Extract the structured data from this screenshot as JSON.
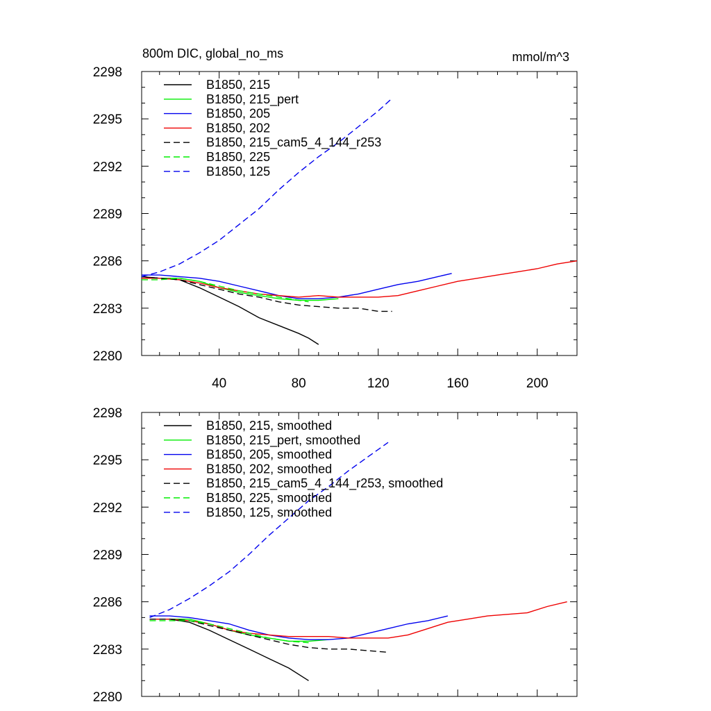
{
  "chart_data": [
    {
      "type": "line",
      "title": "800m DIC, global_no_ms",
      "units": "mmol/m^3",
      "xlabel": "",
      "ylabel": "",
      "xlim": [
        1,
        220
      ],
      "ylim": [
        2280,
        2298
      ],
      "xticks": [
        40,
        80,
        120,
        160,
        200
      ],
      "xtick_labels": [
        "40",
        "80",
        "120",
        "160",
        "200"
      ],
      "yticks": [
        2280,
        2283,
        2286,
        2289,
        2292,
        2295,
        2298
      ],
      "ytick_labels": [
        "2280",
        "2283",
        "2286",
        "2289",
        "2292",
        "2295",
        "2298"
      ],
      "grid": false,
      "legend_position": "top-left",
      "series": [
        {
          "name": "B1850, 215",
          "color": "#000000",
          "dash": "solid",
          "x": [
            1,
            10,
            20,
            30,
            40,
            50,
            60,
            70,
            80,
            85,
            90
          ],
          "y": [
            2285.0,
            2284.9,
            2284.8,
            2284.3,
            2283.7,
            2283.1,
            2282.4,
            2281.9,
            2281.4,
            2281.1,
            2280.7
          ]
        },
        {
          "name": "B1850, 215_pert",
          "color": "#00ee00",
          "dash": "solid",
          "x": [
            1,
            10,
            20,
            30,
            40,
            50,
            60,
            70,
            80,
            90,
            100
          ],
          "y": [
            2284.9,
            2284.9,
            2284.9,
            2284.7,
            2284.3,
            2284.0,
            2283.8,
            2283.6,
            2283.5,
            2283.5,
            2283.6
          ]
        },
        {
          "name": "B1850, 205",
          "color": "#0000ee",
          "dash": "solid",
          "x": [
            1,
            10,
            20,
            30,
            40,
            50,
            60,
            70,
            80,
            90,
            100,
            110,
            120,
            130,
            140,
            150,
            157
          ],
          "y": [
            2285.1,
            2285.1,
            2285.0,
            2284.9,
            2284.7,
            2284.4,
            2284.1,
            2283.8,
            2283.6,
            2283.6,
            2283.7,
            2283.9,
            2284.2,
            2284.5,
            2284.7,
            2285.0,
            2285.2
          ]
        },
        {
          "name": "B1850, 202",
          "color": "#ee0000",
          "dash": "solid",
          "x": [
            1,
            10,
            20,
            30,
            40,
            50,
            60,
            70,
            80,
            90,
            100,
            110,
            120,
            130,
            140,
            150,
            160,
            170,
            180,
            190,
            200,
            210,
            220
          ],
          "y": [
            2284.9,
            2284.9,
            2284.8,
            2284.6,
            2284.3,
            2284.1,
            2283.9,
            2283.8,
            2283.7,
            2283.8,
            2283.7,
            2283.7,
            2283.7,
            2283.8,
            2284.1,
            2284.4,
            2284.7,
            2284.9,
            2285.1,
            2285.3,
            2285.5,
            2285.8,
            2286.0
          ]
        },
        {
          "name": "B1850, 215_cam5_4_144_r253",
          "color": "#000000",
          "dash": "dashed",
          "x": [
            1,
            10,
            20,
            30,
            40,
            50,
            60,
            70,
            80,
            90,
            100,
            110,
            120,
            127
          ],
          "y": [
            2285.0,
            2284.9,
            2284.8,
            2284.5,
            2284.2,
            2283.9,
            2283.7,
            2283.4,
            2283.2,
            2283.1,
            2283.0,
            2283.0,
            2282.8,
            2282.8
          ]
        },
        {
          "name": "B1850, 225",
          "color": "#00ee00",
          "dash": "dashed",
          "x": [
            1,
            10,
            20,
            30,
            40,
            50,
            60,
            70,
            80,
            85
          ],
          "y": [
            2284.8,
            2284.8,
            2284.9,
            2284.7,
            2284.4,
            2284.1,
            2283.9,
            2283.7,
            2283.5,
            2283.4
          ]
        },
        {
          "name": "B1850, 125",
          "color": "#0000ee",
          "dash": "dashed",
          "x": [
            1,
            10,
            20,
            30,
            40,
            50,
            60,
            70,
            80,
            90,
            100,
            110,
            120,
            127
          ],
          "y": [
            2285.0,
            2285.3,
            2285.8,
            2286.5,
            2287.3,
            2288.3,
            2289.3,
            2290.5,
            2291.6,
            2292.6,
            2293.5,
            2294.5,
            2295.5,
            2296.3
          ]
        }
      ]
    },
    {
      "type": "line",
      "title": "",
      "units": "",
      "xlabel": "",
      "ylabel": "",
      "xlim": [
        1,
        220
      ],
      "ylim": [
        2280,
        2298
      ],
      "xticks": [
        40,
        80,
        120,
        160,
        200
      ],
      "xtick_labels": [],
      "yticks": [
        2280,
        2283,
        2286,
        2289,
        2292,
        2295,
        2298
      ],
      "ytick_labels": [
        "2280",
        "2283",
        "2286",
        "2289",
        "2292",
        "2295",
        "2298"
      ],
      "grid": false,
      "legend_position": "top-left",
      "series": [
        {
          "name": "B1850, 215, smoothed",
          "color": "#000000",
          "dash": "solid",
          "x": [
            5,
            15,
            25,
            35,
            45,
            55,
            65,
            75,
            85
          ],
          "y": [
            2284.9,
            2284.9,
            2284.7,
            2284.2,
            2283.6,
            2283.0,
            2282.4,
            2281.8,
            2281.0
          ]
        },
        {
          "name": "B1850, 215_pert, smoothed",
          "color": "#00ee00",
          "dash": "solid",
          "x": [
            5,
            15,
            25,
            35,
            45,
            55,
            65,
            75,
            85,
            95
          ],
          "y": [
            2284.9,
            2284.9,
            2284.9,
            2284.6,
            2284.2,
            2283.9,
            2283.7,
            2283.5,
            2283.5,
            2283.6
          ]
        },
        {
          "name": "B1850, 205, smoothed",
          "color": "#0000ee",
          "dash": "solid",
          "x": [
            5,
            15,
            25,
            35,
            45,
            55,
            65,
            75,
            85,
            95,
            105,
            115,
            125,
            135,
            145,
            155
          ],
          "y": [
            2285.1,
            2285.1,
            2285.0,
            2284.8,
            2284.6,
            2284.2,
            2283.9,
            2283.7,
            2283.6,
            2283.6,
            2283.7,
            2284.0,
            2284.3,
            2284.6,
            2284.8,
            2285.1
          ]
        },
        {
          "name": "B1850, 202, smoothed",
          "color": "#ee0000",
          "dash": "solid",
          "x": [
            5,
            15,
            25,
            35,
            45,
            55,
            65,
            75,
            85,
            95,
            105,
            115,
            125,
            135,
            145,
            155,
            165,
            175,
            185,
            195,
            205,
            215
          ],
          "y": [
            2284.9,
            2284.9,
            2284.8,
            2284.6,
            2284.2,
            2284.0,
            2283.9,
            2283.8,
            2283.8,
            2283.8,
            2283.7,
            2283.7,
            2283.7,
            2283.9,
            2284.3,
            2284.7,
            2284.9,
            2285.1,
            2285.2,
            2285.3,
            2285.7,
            2286.0
          ]
        },
        {
          "name": "B1850, 215_cam5_4_144_r253, smoothed",
          "color": "#000000",
          "dash": "dashed",
          "x": [
            5,
            15,
            25,
            35,
            45,
            55,
            65,
            75,
            85,
            95,
            105,
            115,
            125
          ],
          "y": [
            2284.9,
            2284.9,
            2284.8,
            2284.5,
            2284.2,
            2283.9,
            2283.6,
            2283.3,
            2283.1,
            2283.0,
            2283.0,
            2282.9,
            2282.8
          ]
        },
        {
          "name": "B1850, 225, smoothed",
          "color": "#00ee00",
          "dash": "dashed",
          "x": [
            5,
            15,
            25,
            35,
            45,
            55,
            65,
            75,
            85
          ],
          "y": [
            2284.8,
            2284.8,
            2284.8,
            2284.6,
            2284.3,
            2284.0,
            2283.7,
            2283.5,
            2283.4
          ]
        },
        {
          "name": "B1850, 125, smoothed",
          "color": "#0000ee",
          "dash": "dashed",
          "x": [
            5,
            15,
            25,
            35,
            45,
            55,
            65,
            75,
            85,
            95,
            105,
            115,
            125
          ],
          "y": [
            2285.0,
            2285.5,
            2286.2,
            2287.0,
            2287.9,
            2289.0,
            2290.2,
            2291.3,
            2292.4,
            2293.3,
            2294.3,
            2295.2,
            2296.1
          ]
        }
      ]
    }
  ]
}
